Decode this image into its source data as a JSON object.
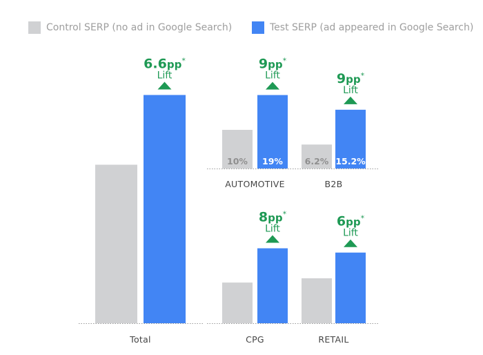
{
  "legend": {
    "control": {
      "label": "Control SERP (no ad in Google Search)",
      "color": "#d0d1d3"
    },
    "test": {
      "label": "Test SERP (ad appeared in Google Search)",
      "color": "#4285f4"
    }
  },
  "colors": {
    "lift": "#1e9954",
    "baseline": "#999999"
  },
  "chart_data": [
    {
      "type": "bar",
      "category": "Total",
      "control_value": 15.0,
      "test_value": 21.6,
      "lift": {
        "value": "6.6",
        "unit": "pp",
        "mark": "*",
        "word": "Lift"
      }
    },
    {
      "type": "bar",
      "category": "AUTOMOTIVE",
      "control_value": 10,
      "test_value": 19,
      "control_label": "10%",
      "test_label": "19%",
      "lift": {
        "value": "9",
        "unit": "pp",
        "mark": "*",
        "word": "Lift"
      }
    },
    {
      "type": "bar",
      "category": "B2B",
      "control_value": 6.2,
      "test_value": 15.2,
      "control_label": "6.2%",
      "test_label": "15.2%",
      "lift": {
        "value": "9",
        "unit": "pp",
        "mark": "*",
        "word": "Lift"
      }
    },
    {
      "type": "bar",
      "category": "CPG",
      "control_value": 9.5,
      "test_value": 17.5,
      "lift": {
        "value": "8",
        "unit": "pp",
        "mark": "*",
        "word": "Lift"
      }
    },
    {
      "type": "bar",
      "category": "RETAIL",
      "control_value": 10.5,
      "test_value": 16.5,
      "lift": {
        "value": "6",
        "unit": "pp",
        "mark": "*",
        "word": "Lift"
      }
    }
  ]
}
